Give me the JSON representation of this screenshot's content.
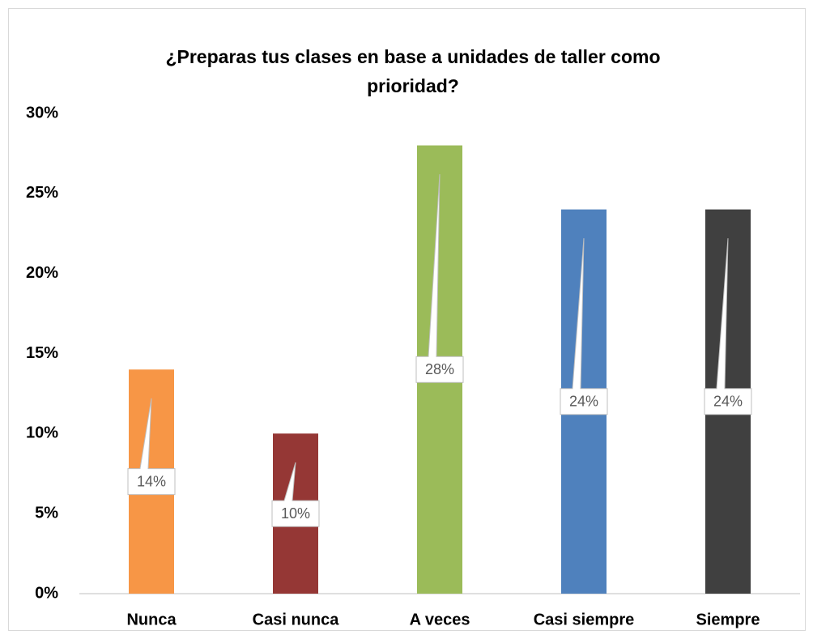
{
  "chart_data": {
    "type": "bar",
    "title": "¿Preparas tus clases en base a unidades de taller como prioridad?",
    "categories": [
      "Nunca",
      "Casi nunca",
      "A veces",
      "Casi siempre",
      "Siempre"
    ],
    "values": [
      14,
      10,
      28,
      24,
      24
    ],
    "value_labels": [
      "14%",
      "10%",
      "28%",
      "24%",
      "24%"
    ],
    "colors": [
      "#f79646",
      "#953735",
      "#9bbb59",
      "#4f81bd",
      "#404040"
    ],
    "ylim": [
      0,
      30
    ],
    "yticks": [
      {
        "value": 0,
        "label": "0%"
      },
      {
        "value": 5,
        "label": "5%"
      },
      {
        "value": 10,
        "label": "10%"
      },
      {
        "value": 15,
        "label": "15%"
      },
      {
        "value": 20,
        "label": "20%"
      },
      {
        "value": 25,
        "label": "25%"
      },
      {
        "value": 30,
        "label": "30%"
      }
    ],
    "grid": false
  }
}
